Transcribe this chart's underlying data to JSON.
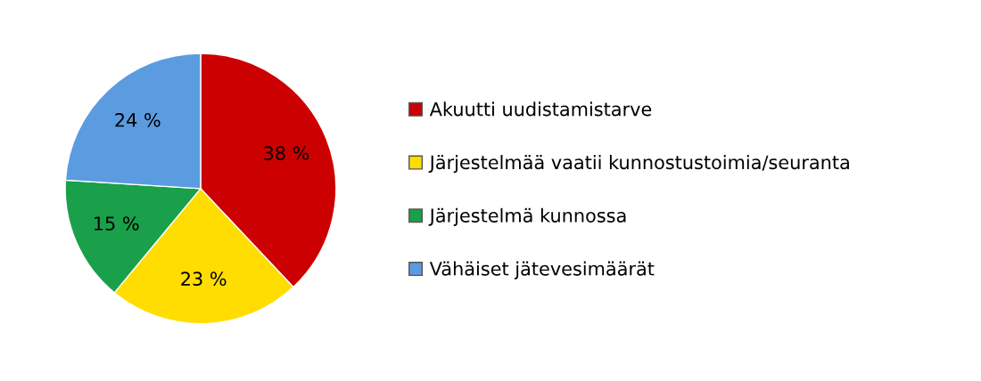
{
  "chart_data": {
    "type": "pie",
    "categories": [
      "Akuutti uudistamistarve",
      "Järjestelmää vaatii kunnostustoimia/seuranta",
      "Järjestelmä kunnossa",
      "Vähäiset jätevesimäärät"
    ],
    "values": [
      38,
      23,
      15,
      24
    ],
    "colors": [
      "#cc0000",
      "#ffdd00",
      "#1aa04a",
      "#5b9be0"
    ],
    "value_labels": [
      "38 %",
      "23 %",
      "15 %",
      "24 %"
    ],
    "legend": "right"
  }
}
